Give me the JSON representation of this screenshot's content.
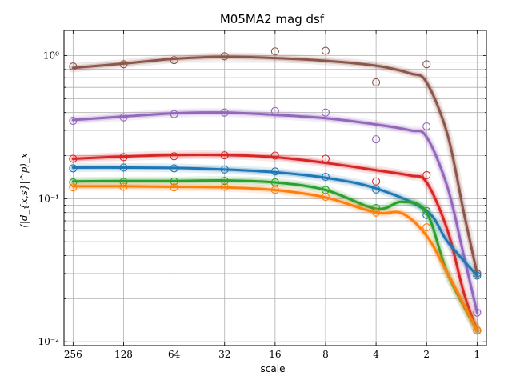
{
  "chart_data": {
    "type": "line",
    "title": "M05MA2 mag dsf",
    "xlabel": "scale",
    "ylabel": "⟨|d_{x,s}|^p⟩_x",
    "x_scale": "log2",
    "x_reversed": true,
    "y_scale": "log",
    "xlim": [
      290,
      0.88
    ],
    "ylim": [
      0.0094,
      1.5
    ],
    "grid": true,
    "legend": "none",
    "x_ticks": [
      256,
      128,
      64,
      32,
      16,
      8,
      4,
      2,
      1
    ],
    "x_tick_labels": [
      "256",
      "128",
      "64",
      "32",
      "16",
      "8",
      "4",
      "2",
      "1"
    ],
    "y_ticks": [
      0.01,
      0.1,
      1
    ],
    "y_tick_labels": [
      "10⁻²",
      "10⁻¹",
      "10⁰"
    ],
    "series": [
      {
        "color": "#8c564b",
        "curve_x": [
          256,
          128,
          64,
          32,
          16,
          8,
          4,
          2.5,
          2,
          1.5,
          1.2,
          1
        ],
        "curve_y": [
          0.82,
          0.88,
          0.95,
          0.98,
          0.96,
          0.92,
          0.85,
          0.75,
          0.65,
          0.28,
          0.08,
          0.03
        ],
        "points_x": [
          256,
          128,
          64,
          32,
          16,
          8,
          4,
          2,
          1
        ],
        "points_y": [
          0.84,
          0.87,
          0.93,
          0.99,
          1.07,
          1.08,
          0.65,
          0.87,
          0.03
        ]
      },
      {
        "color": "#9467bd",
        "curve_x": [
          256,
          128,
          64,
          32,
          16,
          8,
          4,
          2.5,
          2,
          1.5,
          1.2,
          1
        ],
        "curve_y": [
          0.355,
          0.375,
          0.395,
          0.4,
          0.385,
          0.365,
          0.33,
          0.3,
          0.27,
          0.12,
          0.04,
          0.016
        ],
        "points_x": [
          256,
          128,
          64,
          32,
          16,
          8,
          4,
          2,
          1
        ],
        "points_y": [
          0.35,
          0.37,
          0.39,
          0.4,
          0.41,
          0.4,
          0.26,
          0.32,
          0.016
        ]
      },
      {
        "color": "#d62728",
        "curve_x": [
          256,
          128,
          64,
          32,
          16,
          8,
          4,
          2.5,
          2,
          1.5,
          1.2,
          1
        ],
        "curve_y": [
          0.19,
          0.197,
          0.202,
          0.202,
          0.195,
          0.178,
          0.158,
          0.145,
          0.13,
          0.06,
          0.022,
          0.012
        ],
        "points_x": [
          256,
          128,
          64,
          32,
          16,
          8,
          4,
          2,
          1
        ],
        "points_y": [
          0.19,
          0.195,
          0.198,
          0.201,
          0.2,
          0.19,
          0.132,
          0.146,
          0.012
        ]
      },
      {
        "color": "#1f77b4",
        "curve_x": [
          256,
          128,
          64,
          32,
          16,
          8,
          4,
          2,
          1.5,
          1
        ],
        "curve_y": [
          0.165,
          0.165,
          0.164,
          0.16,
          0.153,
          0.14,
          0.118,
          0.082,
          0.05,
          0.029
        ],
        "points_x": [
          256,
          128,
          64,
          32,
          16,
          8,
          4,
          2,
          1
        ],
        "points_y": [
          0.163,
          0.165,
          0.163,
          0.16,
          0.155,
          0.142,
          0.116,
          0.077,
          0.029
        ]
      },
      {
        "color": "#2ca02c",
        "curve_x": [
          256,
          128,
          64,
          32,
          16,
          8,
          4,
          2.8,
          2,
          1.5,
          1
        ],
        "curve_y": [
          0.132,
          0.133,
          0.133,
          0.134,
          0.13,
          0.115,
          0.085,
          0.095,
          0.08,
          0.03,
          0.012
        ],
        "points_x": [
          256,
          128,
          64,
          32,
          16,
          8,
          4,
          2,
          1
        ],
        "points_y": [
          0.13,
          0.131,
          0.132,
          0.133,
          0.13,
          0.115,
          0.086,
          0.082,
          0.012
        ]
      },
      {
        "color": "#ff7f0e",
        "curve_x": [
          256,
          128,
          64,
          32,
          16,
          8,
          4,
          2.8,
          2,
          1.5,
          1
        ],
        "curve_y": [
          0.122,
          0.122,
          0.121,
          0.12,
          0.115,
          0.102,
          0.08,
          0.079,
          0.055,
          0.03,
          0.012
        ],
        "points_x": [
          256,
          128,
          64,
          32,
          16,
          8,
          4,
          2,
          1
        ],
        "points_y": [
          0.12,
          0.121,
          0.12,
          0.121,
          0.115,
          0.103,
          0.08,
          0.063,
          0.012
        ]
      }
    ]
  }
}
